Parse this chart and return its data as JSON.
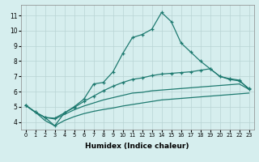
{
  "xlabel": "Humidex (Indice chaleur)",
  "xlim": [
    -0.5,
    23.5
  ],
  "ylim": [
    3.5,
    11.7
  ],
  "xticks": [
    0,
    1,
    2,
    3,
    4,
    5,
    6,
    7,
    8,
    9,
    10,
    11,
    12,
    13,
    14,
    15,
    16,
    17,
    18,
    19,
    20,
    21,
    22,
    23
  ],
  "yticks": [
    4,
    5,
    6,
    7,
    8,
    9,
    10,
    11
  ],
  "background_color": "#d6eeee",
  "line_color": "#1e7a70",
  "grid_color": "#b8d4d4",
  "line1_y": [
    5.1,
    4.65,
    4.3,
    3.75,
    4.6,
    5.0,
    5.5,
    6.5,
    6.6,
    7.3,
    8.5,
    9.55,
    9.75,
    10.1,
    11.2,
    10.6,
    9.2,
    8.6,
    8.0,
    7.5,
    7.0,
    6.8,
    6.7,
    6.2
  ],
  "line2_y": [
    5.1,
    4.65,
    4.3,
    4.25,
    4.6,
    4.95,
    5.35,
    5.7,
    6.05,
    6.35,
    6.6,
    6.8,
    6.9,
    7.05,
    7.15,
    7.2,
    7.25,
    7.3,
    7.4,
    7.5,
    7.0,
    6.85,
    6.75,
    6.15
  ],
  "line3_y": [
    5.1,
    4.65,
    4.3,
    4.2,
    4.5,
    4.8,
    5.05,
    5.25,
    5.45,
    5.6,
    5.75,
    5.9,
    5.95,
    6.05,
    6.1,
    6.15,
    6.2,
    6.25,
    6.3,
    6.35,
    6.4,
    6.45,
    6.5,
    6.15
  ],
  "line4_y": [
    5.1,
    4.65,
    4.1,
    3.75,
    4.1,
    4.35,
    4.55,
    4.7,
    4.82,
    4.92,
    5.05,
    5.15,
    5.25,
    5.35,
    5.45,
    5.5,
    5.55,
    5.6,
    5.65,
    5.7,
    5.75,
    5.8,
    5.85,
    5.9
  ]
}
